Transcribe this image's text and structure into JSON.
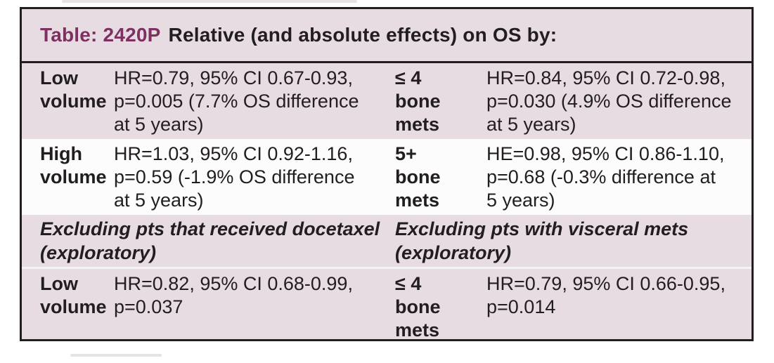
{
  "colors": {
    "accent": "#7c3161",
    "ink": "#211d20",
    "row_pink": "#e7dce1",
    "row_white": "#fdfcfd",
    "separator": "#f7f2f4"
  },
  "title": {
    "prefix": "Table: 2420P",
    "text": "Relative (and absolute effects) on OS by:"
  },
  "table": {
    "rows": [
      {
        "label_a": "Low\nvolume",
        "data_a": "HR=0.79, 95% CI 0.67-0.93,\np=0.005 (7.7% OS difference\nat 5 years)",
        "label_b": "≤ 4\nbone\nmets",
        "data_b": "HR=0.84, 95% CI 0.72-0.98,\np=0.030 (4.9% OS difference\nat 5 years)"
      },
      {
        "label_a": "High\nvolume",
        "data_a": "HR=1.03, 95% CI 0.92-1.16,\np=0.59 (-1.9% OS difference\nat 5 years)",
        "label_b": "5+\nbone\nmets",
        "data_b": "HE=0.98, 95% CI 0.86-1.10,\np=0.68 (-0.3% difference at\n5 years)"
      },
      {
        "type": "subheader",
        "left": "Excluding pts that received docetaxel\n(exploratory)",
        "right": "Excluding pts with visceral mets\n(exploratory)"
      },
      {
        "label_a": "Low\nvolume",
        "data_a": "HR=0.82, 95% CI 0.68-0.99,\np=0.037",
        "label_b": "≤ 4\nbone\nmets",
        "data_b": "HR=0.79, 95% CI 0.66-0.95,\np=0.014"
      }
    ]
  }
}
